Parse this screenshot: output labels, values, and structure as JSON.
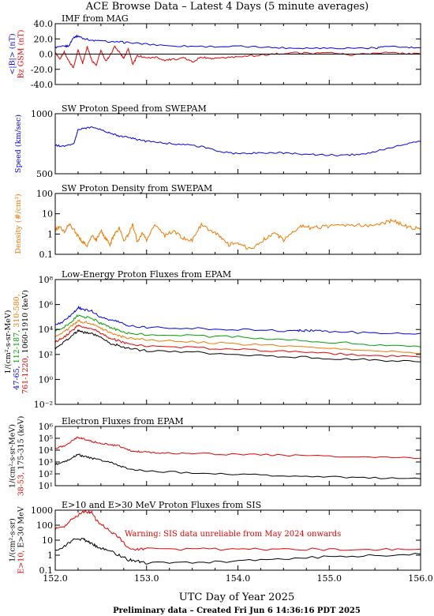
{
  "title": "ACE Browse Data – Latest 4 Days (5 minute averages)",
  "xlabel": "UTC Day of Year 2025",
  "footer": "Preliminary data – Created Fri Jun  6 14:36:16 PDT 2025",
  "colors": {
    "blue": "#0000e6",
    "red": "#e60000",
    "green": "#00a000",
    "orange": "#f07800",
    "black": "#000000"
  },
  "chart_data": [
    {
      "type": "line",
      "title": "IMF from MAG",
      "xlim": [
        152.0,
        156.0
      ],
      "x_ticks": [
        "152.0",
        "153.0",
        "154.0",
        "155.0",
        "156.0"
      ],
      "ylim": [
        -40,
        40
      ],
      "y_ticks": [
        "40.0",
        "20.0",
        "0.0",
        "-20.0",
        "-40.0"
      ],
      "ylabel": [
        {
          "text": "<|B|> (nT)",
          "color": "blue"
        },
        {
          "text": "Bz GSM (nT)",
          "color": "red"
        }
      ],
      "zero_line": true,
      "series": [
        {
          "color": "blue",
          "x": [
            152.0,
            152.1,
            152.15,
            152.2,
            152.25,
            152.3,
            152.4,
            152.5,
            152.7,
            152.8,
            153.0,
            153.3,
            153.6,
            154.0,
            154.3,
            154.6,
            154.9,
            155.2,
            155.5,
            155.6,
            155.8,
            156.0
          ],
          "values": [
            9,
            10,
            11,
            22,
            24,
            21,
            18,
            17,
            16,
            15,
            13,
            11,
            10,
            10,
            9,
            8,
            8,
            8,
            8,
            10,
            9,
            8
          ]
        },
        {
          "color": "red",
          "x": [
            152.0,
            152.05,
            152.1,
            152.15,
            152.2,
            152.25,
            152.3,
            152.35,
            152.4,
            152.45,
            152.5,
            152.55,
            152.6,
            152.65,
            152.7,
            152.75,
            152.8,
            152.85,
            152.9,
            153.0,
            153.1,
            153.2,
            153.3,
            153.4,
            153.5,
            153.6,
            153.7,
            153.8,
            153.9,
            154.0,
            154.2,
            154.4,
            154.6,
            154.8,
            155.0,
            155.2,
            155.4,
            155.6,
            155.8,
            156.0
          ],
          "values": [
            2,
            -6,
            3,
            -10,
            -18,
            6,
            -12,
            10,
            -8,
            -15,
            5,
            -9,
            -2,
            10,
            3,
            -6,
            8,
            -14,
            -2,
            -5,
            -4,
            -8,
            -7,
            -5,
            -10,
            -4,
            -6,
            -6,
            -4,
            -3,
            -2,
            0,
            2,
            1,
            2,
            -1,
            0,
            2,
            1,
            0
          ]
        }
      ]
    },
    {
      "type": "line",
      "title": "SW Proton Speed from SWEPAM",
      "xlim": [
        152.0,
        156.0
      ],
      "x_ticks": [
        "152.0",
        "153.0",
        "154.0",
        "155.0",
        "156.0"
      ],
      "ylim": [
        250,
        1250
      ],
      "y_ticks": [
        "1000",
        "500"
      ],
      "ylabel": [
        {
          "text": "Speed (km/sec)",
          "color": "blue"
        }
      ],
      "series": [
        {
          "color": "blue",
          "x": [
            152.0,
            152.1,
            152.2,
            152.25,
            152.3,
            152.4,
            152.5,
            152.6,
            152.7,
            152.8,
            152.9,
            153.0,
            153.2,
            153.4,
            153.6,
            153.8,
            154.0,
            154.2,
            154.4,
            154.6,
            154.8,
            155.0,
            155.2,
            155.4,
            155.6,
            155.8,
            156.0
          ],
          "values": [
            720,
            710,
            740,
            980,
            1000,
            1030,
            980,
            930,
            880,
            860,
            820,
            790,
            760,
            740,
            700,
            620,
            580,
            600,
            600,
            590,
            570,
            560,
            560,
            590,
            650,
            730,
            790
          ]
        }
      ]
    },
    {
      "type": "line",
      "title": "SW Proton Density from SWEPAM",
      "xlim": [
        152.0,
        156.0
      ],
      "x_ticks": [
        "152.0",
        "153.0",
        "154.0",
        "155.0",
        "156.0"
      ],
      "yscale": "log",
      "ylim": [
        0.1,
        100
      ],
      "y_ticks": [
        "100",
        "10",
        "1",
        "0.1"
      ],
      "ylabel": [
        {
          "text": "Density (#/cm³)",
          "color": "orange"
        }
      ],
      "series": [
        {
          "color": "orange",
          "x": [
            152.0,
            152.05,
            152.1,
            152.15,
            152.2,
            152.25,
            152.3,
            152.35,
            152.4,
            152.45,
            152.5,
            152.55,
            152.6,
            152.65,
            152.7,
            152.75,
            152.8,
            152.85,
            152.9,
            152.95,
            153.0,
            153.1,
            153.2,
            153.3,
            153.4,
            153.5,
            153.6,
            153.7,
            153.8,
            153.9,
            154.0,
            154.1,
            154.2,
            154.3,
            154.4,
            154.5,
            154.6,
            154.7,
            154.8,
            154.9,
            155.0,
            155.2,
            155.4,
            155.6,
            155.7,
            155.8,
            155.9,
            156.0
          ],
          "values": [
            1.5,
            2.5,
            1.2,
            3.0,
            1.8,
            0.8,
            0.4,
            0.25,
            0.8,
            0.5,
            1.5,
            0.6,
            0.3,
            1.0,
            2.0,
            0.5,
            0.9,
            3.0,
            0.4,
            1.2,
            0.5,
            3.0,
            0.8,
            1.5,
            0.6,
            0.5,
            3.0,
            1.5,
            0.8,
            0.3,
            0.4,
            0.2,
            0.25,
            0.6,
            1.2,
            0.5,
            1.2,
            2.5,
            2.0,
            2.2,
            2.5,
            2.8,
            2.6,
            3.5,
            5.0,
            2.8,
            2.0,
            2.0
          ]
        }
      ]
    },
    {
      "type": "line",
      "title": "Low-Energy Proton Fluxes from EPAM",
      "xlim": [
        152.0,
        156.0
      ],
      "x_ticks": [
        "152.0",
        "153.0",
        "154.0",
        "155.0",
        "156.0"
      ],
      "yscale": "log",
      "ylim": [
        0.01,
        100000000
      ],
      "y_ticks": [
        "10⁸",
        "10⁶",
        "10⁴",
        "10²",
        "10⁰",
        "10⁻²"
      ],
      "ylabel": [
        {
          "text": "1/(cm²-s-sr-MeV)",
          "color": "black"
        },
        {
          "text": "47-65,",
          "color": "blue"
        },
        {
          "text": "112-187,",
          "color": "green"
        },
        {
          "text": "310-580,",
          "color": "orange"
        },
        {
          "text": "761-1220,",
          "color": "red"
        },
        {
          "text": "1060-1910 (keV)",
          "color": "black"
        }
      ],
      "series": [
        {
          "name": "47-65",
          "color": "blue",
          "x": [
            152.0,
            152.1,
            152.2,
            152.25,
            152.3,
            152.4,
            152.5,
            152.6,
            152.7,
            152.8,
            153.0,
            153.5,
            154.0,
            154.5,
            154.65,
            154.7,
            154.8,
            155.0,
            155.5,
            156.0
          ],
          "values": [
            20000,
            50000,
            200000,
            600000,
            400000,
            300000,
            100000,
            60000,
            40000,
            20000,
            15000,
            12000,
            10000,
            8000,
            8000,
            8000,
            8000,
            7000,
            5000,
            5000
          ]
        },
        {
          "name": "112-187",
          "color": "green",
          "x": [
            152.0,
            152.1,
            152.2,
            152.25,
            152.3,
            152.4,
            152.5,
            152.6,
            152.7,
            152.8,
            153.0,
            153.5,
            154.0,
            154.5,
            155.0,
            155.5,
            156.0
          ],
          "values": [
            8000,
            15000,
            60000,
            150000,
            100000,
            80000,
            30000,
            15000,
            8000,
            5000,
            4000,
            3000,
            2500,
            1500,
            1000,
            600,
            400
          ]
        },
        {
          "name": "310-580",
          "color": "orange",
          "x": [
            152.0,
            152.1,
            152.2,
            152.25,
            152.3,
            152.4,
            152.5,
            152.6,
            152.7,
            152.8,
            153.0,
            153.5,
            154.0,
            154.5,
            155.0,
            155.5,
            156.0
          ],
          "values": [
            3000,
            6000,
            25000,
            50000,
            40000,
            30000,
            12000,
            6000,
            3000,
            2000,
            1500,
            1000,
            700,
            450,
            300,
            200,
            120
          ]
        },
        {
          "name": "761-1220",
          "color": "red",
          "x": [
            152.0,
            152.1,
            152.2,
            152.25,
            152.3,
            152.4,
            152.5,
            152.6,
            152.7,
            152.8,
            153.0,
            153.5,
            154.0,
            154.5,
            155.0,
            155.5,
            156.0
          ],
          "values": [
            1000,
            2500,
            10000,
            20000,
            15000,
            12000,
            5000,
            2000,
            1200,
            700,
            500,
            350,
            250,
            180,
            120,
            80,
            60
          ]
        },
        {
          "name": "1060-1910",
          "color": "black",
          "x": [
            152.0,
            152.1,
            152.2,
            152.25,
            152.3,
            152.4,
            152.5,
            152.6,
            152.7,
            152.8,
            153.0,
            153.5,
            154.0,
            154.5,
            155.0,
            155.5,
            156.0
          ],
          "values": [
            300,
            1000,
            4000,
            8000,
            6000,
            5000,
            2000,
            800,
            500,
            300,
            200,
            150,
            100,
            70,
            50,
            35,
            25
          ]
        }
      ]
    },
    {
      "type": "line",
      "title": "Electron Fluxes from EPAM",
      "xlim": [
        152.0,
        156.0
      ],
      "x_ticks": [
        "152.0",
        "153.0",
        "154.0",
        "155.0",
        "156.0"
      ],
      "yscale": "log",
      "ylim": [
        10,
        10000000
      ],
      "y_ticks": [
        "10⁶",
        "10⁵",
        "10⁴",
        "10³",
        "10²",
        "10¹"
      ],
      "ylabel": [
        {
          "text": "1/(cm²-s-sr-MeV)",
          "color": "black"
        },
        {
          "text": "38-53,",
          "color": "red"
        },
        {
          "text": "175-315 (keV)",
          "color": "black"
        }
      ],
      "series": [
        {
          "name": "38-53",
          "color": "red",
          "x": [
            152.0,
            152.1,
            152.2,
            152.25,
            152.3,
            152.4,
            152.5,
            152.6,
            152.7,
            152.8,
            152.9,
            153.0,
            153.2,
            153.5,
            154.0,
            154.5,
            155.0,
            155.5,
            156.0
          ],
          "values": [
            60000,
            100000,
            400000,
            800000,
            600000,
            300000,
            200000,
            150000,
            100000,
            40000,
            30000,
            25000,
            20000,
            18000,
            15000,
            12000,
            10000,
            8000,
            6000
          ]
        },
        {
          "name": "175-315",
          "color": "black",
          "x": [
            152.0,
            152.1,
            152.2,
            152.25,
            152.3,
            152.4,
            152.5,
            152.6,
            152.7,
            152.8,
            153.0,
            153.5,
            154.0,
            154.5,
            155.0,
            155.5,
            156.0
          ],
          "values": [
            1500,
            2500,
            8000,
            15000,
            10000,
            6000,
            4000,
            2500,
            1000,
            500,
            300,
            200,
            150,
            100,
            80,
            60,
            50
          ]
        }
      ]
    },
    {
      "type": "line",
      "title": "E>10 and E>30 MeV Proton Fluxes from SIS",
      "annotation": "Warning: SIS data unreliable from May 2024 onwards",
      "xlim": [
        152.0,
        156.0
      ],
      "x_ticks": [
        "152.0",
        "153.0",
        "154.0",
        "155.0",
        "156.0"
      ],
      "yscale": "log",
      "ylim": [
        0.1,
        1000
      ],
      "y_ticks": [
        "1000",
        "100",
        "10",
        "1",
        "0.1"
      ],
      "ylabel": [
        {
          "text": "1/(cm²-s-sr)",
          "color": "black"
        },
        {
          "text": "E>10,",
          "color": "red"
        },
        {
          "text": "E>30 MeV",
          "color": "black"
        }
      ],
      "series": [
        {
          "name": "E>10",
          "color": "red",
          "x": [
            152.0,
            152.1,
            152.2,
            152.3,
            152.35,
            152.4,
            152.45,
            152.5,
            152.6,
            152.7,
            152.8,
            152.9,
            153.0,
            153.5,
            154.0,
            154.5,
            155.0,
            155.5,
            156.0
          ],
          "values": [
            60,
            80,
            300,
            700,
            800,
            700,
            200,
            120,
            40,
            15,
            3,
            2.5,
            2.5,
            2.5,
            2.5,
            2.5,
            2.5,
            2.5,
            2.5
          ]
        },
        {
          "name": "E>30",
          "color": "black",
          "x": [
            152.0,
            152.1,
            152.2,
            152.3,
            152.35,
            152.4,
            152.45,
            152.5,
            152.6,
            152.7,
            152.8,
            152.9,
            153.0,
            153.5,
            154.0,
            154.5,
            155.0,
            155.5,
            156.0
          ],
          "values": [
            2,
            4,
            10,
            12,
            8,
            6,
            4,
            3,
            2,
            1,
            0.5,
            0.4,
            0.3,
            0.3,
            0.4,
            0.6,
            0.8,
            1.0,
            1.2
          ]
        }
      ]
    }
  ]
}
